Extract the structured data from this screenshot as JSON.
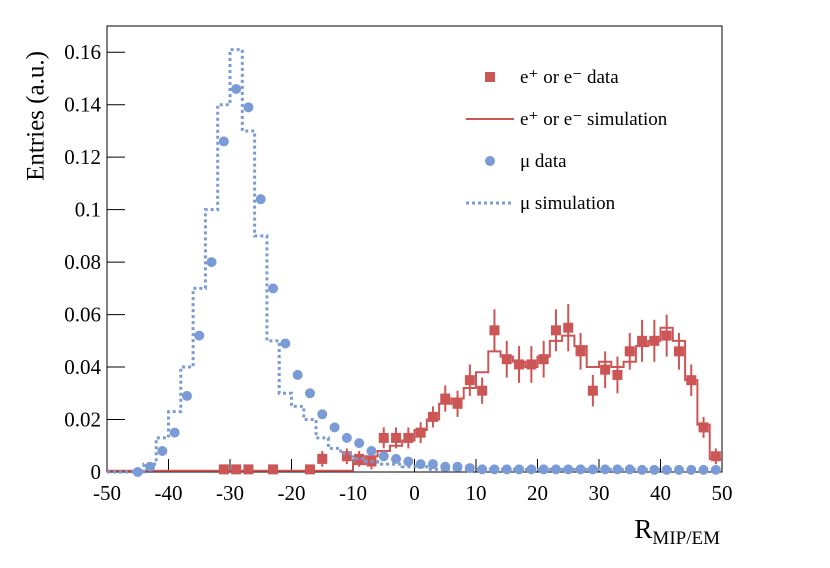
{
  "chart_data": {
    "type": "histogram",
    "ylabel": "Entries (a.u.)",
    "xlabel": "R",
    "xlabel_sub": "MIP/EM",
    "xlim": [
      -50,
      50
    ],
    "xticks": [
      -50,
      -40,
      -30,
      -20,
      -10,
      0,
      10,
      20,
      30,
      40,
      50
    ],
    "ylim": [
      0,
      0.17
    ],
    "yticks": [
      0,
      0.02,
      0.04,
      0.06,
      0.08,
      0.1,
      0.12,
      0.14,
      0.16
    ],
    "legend": "upper right",
    "x": [
      -49,
      -47,
      -45,
      -43,
      -41,
      -39,
      -37,
      -35,
      -33,
      -31,
      -29,
      -27,
      -25,
      -23,
      -21,
      -19,
      -17,
      -15,
      -13,
      -11,
      -9,
      -7,
      -5,
      -3,
      -1,
      1,
      3,
      5,
      7,
      9,
      11,
      13,
      15,
      17,
      19,
      21,
      23,
      25,
      27,
      29,
      31,
      33,
      35,
      37,
      39,
      41,
      43,
      45,
      47,
      49
    ],
    "series": [
      {
        "name": "e⁺ or e⁻ data",
        "color": "#cc5555",
        "style": "markers",
        "marker": "square",
        "values": [
          null,
          null,
          null,
          null,
          null,
          null,
          null,
          null,
          null,
          0.001,
          0.001,
          0.001,
          null,
          0.001,
          null,
          null,
          0.001,
          0.005,
          null,
          0.006,
          0.005,
          0.004,
          0.013,
          0.013,
          0.013,
          0.015,
          0.021,
          0.028,
          0.026,
          0.035,
          0.031,
          0.054,
          0.043,
          0.041,
          0.041,
          0.043,
          0.054,
          0.055,
          0.046,
          0.031,
          0.039,
          0.037,
          0.046,
          0.05,
          0.05,
          0.052,
          0.046,
          0.035,
          0.017,
          0.006
        ],
        "errors": [
          null,
          null,
          null,
          null,
          null,
          null,
          null,
          null,
          null,
          0.001,
          0.001,
          0.001,
          null,
          0.001,
          null,
          null,
          0.001,
          0.003,
          null,
          0.003,
          0.003,
          0.003,
          0.004,
          0.004,
          0.004,
          0.004,
          0.004,
          0.005,
          0.005,
          0.006,
          0.005,
          0.008,
          0.007,
          0.007,
          0.007,
          0.007,
          0.008,
          0.009,
          0.007,
          0.006,
          0.007,
          0.007,
          0.007,
          0.008,
          0.008,
          0.008,
          0.007,
          0.006,
          0.004,
          0.003
        ]
      },
      {
        "name": "e⁺ or e⁻ simulation",
        "color": "#cc5555",
        "style": "step",
        "dashed": false,
        "values": [
          0.0005,
          0.0005,
          0.0005,
          0.0005,
          0.0005,
          0.0005,
          0.0005,
          0.0005,
          0.0005,
          0.0005,
          0.0005,
          0.0005,
          0.0005,
          0.0005,
          0.0005,
          0.0005,
          0.0005,
          0.0005,
          0.0005,
          0.0005,
          0.003,
          0.006,
          0.008,
          0.01,
          0.012,
          0.016,
          0.02,
          0.026,
          0.028,
          0.032,
          0.038,
          0.046,
          0.044,
          0.042,
          0.04,
          0.044,
          0.05,
          0.052,
          0.048,
          0.04,
          0.042,
          0.04,
          0.042,
          0.048,
          0.05,
          0.055,
          0.05,
          0.035,
          0.018,
          0.005
        ]
      },
      {
        "name": "μ data",
        "color": "#7b9bd6",
        "style": "markers",
        "marker": "circle",
        "values": [
          null,
          null,
          0,
          0.002,
          0.008,
          0.015,
          0.029,
          0.052,
          0.08,
          0.126,
          0.146,
          0.139,
          0.104,
          0.07,
          0.049,
          0.037,
          0.03,
          0.022,
          0.017,
          0.013,
          0.011,
          0.008,
          0.006,
          0.005,
          0.004,
          0.003,
          0.003,
          0.002,
          0.002,
          0.0015,
          0.001,
          0.001,
          0.001,
          0.001,
          0.001,
          0.001,
          0.001,
          0.001,
          0.001,
          0.001,
          0.001,
          0.001,
          0.001,
          0.0008,
          0.0008,
          0.0008,
          0.0008,
          0.0008,
          0.0008,
          0.0008
        ]
      },
      {
        "name": "μ simulation",
        "color": "#7b9bd6",
        "style": "step",
        "dashed": true,
        "values": [
          0,
          0,
          0,
          0.003,
          0.013,
          0.023,
          0.04,
          0.07,
          0.1,
          0.14,
          0.161,
          0.13,
          0.09,
          0.05,
          0.03,
          0.025,
          0.02,
          0.013,
          0.009,
          0.007,
          0.005,
          0.004,
          0.003,
          0.003,
          0.002,
          0.002,
          0.001,
          0.001,
          0.001,
          0.001,
          0.001,
          0.001,
          0.001,
          0.001,
          0.001,
          0.001,
          0.001,
          0.001,
          0.001,
          0.001,
          0.001,
          0.001,
          0.001,
          0.001,
          0.001,
          0.001,
          0.001,
          0.001,
          0.001,
          0.001
        ]
      }
    ]
  }
}
